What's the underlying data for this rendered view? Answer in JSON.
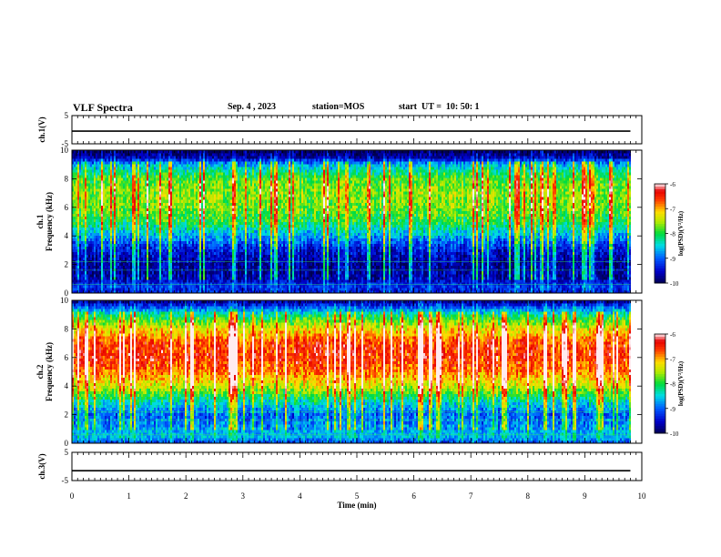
{
  "header": {
    "title": "VLF Spectra",
    "date": "Sep. 4 , 2023",
    "station": "station=MOS",
    "start": "start  UT =  10: 50: 1"
  },
  "chart_data": [
    {
      "type": "line",
      "panel": "ch1-waveform",
      "ylabel": "ch.1(V)",
      "ylim": [
        -5,
        5
      ],
      "yticks": [
        "5",
        "-5"
      ],
      "xlim": [
        0,
        10
      ],
      "series": [
        {
          "x": [
            0,
            9.8
          ],
          "values": [
            -0.5,
            -0.5
          ]
        }
      ]
    },
    {
      "type": "heatmap",
      "panel": "ch1-spectrogram",
      "ylabel": "ch.1\nFrequency (kHz)",
      "ylim": [
        0,
        10
      ],
      "yticks": [
        "0",
        "2",
        "4",
        "6",
        "8",
        "10"
      ],
      "xlim": [
        0,
        10
      ],
      "data_xmax": 9.8,
      "profile": [
        {
          "f": 0.0,
          "level": -9.4
        },
        {
          "f": 0.5,
          "level": -9.2
        },
        {
          "f": 1.0,
          "level": -9.6
        },
        {
          "f": 2.0,
          "level": -9.7
        },
        {
          "f": 3.0,
          "level": -9.4
        },
        {
          "f": 4.0,
          "level": -8.7
        },
        {
          "f": 5.0,
          "level": -8.0
        },
        {
          "f": 6.0,
          "level": -7.7
        },
        {
          "f": 7.0,
          "level": -7.6
        },
        {
          "f": 8.0,
          "level": -7.8
        },
        {
          "f": 9.0,
          "level": -8.6
        },
        {
          "f": 9.5,
          "level": -9.6
        },
        {
          "f": 10.0,
          "level": -10.0
        }
      ],
      "colorbar": {
        "label": "log(PSD)(V²/Hz)",
        "range": [
          -10,
          -6
        ],
        "ticks": [
          "-6",
          "-7",
          "-8",
          "-9",
          "-10"
        ]
      }
    },
    {
      "type": "heatmap",
      "panel": "ch2-spectrogram",
      "ylabel": "ch.2\nFrequency (kHz)",
      "ylim": [
        0,
        10
      ],
      "yticks": [
        "0",
        "2",
        "4",
        "6",
        "8",
        "10"
      ],
      "xlim": [
        0,
        10
      ],
      "data_xmax": 9.8,
      "profile": [
        {
          "f": 0.0,
          "level": -9.2
        },
        {
          "f": 0.5,
          "level": -8.6
        },
        {
          "f": 1.0,
          "level": -8.7
        },
        {
          "f": 2.0,
          "level": -9.0
        },
        {
          "f": 3.0,
          "level": -8.3
        },
        {
          "f": 4.0,
          "level": -7.4
        },
        {
          "f": 5.0,
          "level": -6.8
        },
        {
          "f": 6.0,
          "level": -6.5
        },
        {
          "f": 7.0,
          "level": -6.6
        },
        {
          "f": 8.0,
          "level": -7.2
        },
        {
          "f": 9.0,
          "level": -8.2
        },
        {
          "f": 9.5,
          "level": -9.0
        },
        {
          "f": 10.0,
          "level": -9.8
        }
      ],
      "colorbar": {
        "label": "log(PSD)(V²/Hz)",
        "range": [
          -10,
          -6
        ],
        "ticks": [
          "-6",
          "-7",
          "-8",
          "-9",
          "-10"
        ]
      }
    },
    {
      "type": "line",
      "panel": "ch3-waveform",
      "ylabel": "ch.3(V)",
      "ylim": [
        -5,
        5
      ],
      "yticks": [
        "5",
        "-5"
      ],
      "xlim": [
        0,
        10
      ],
      "xlabel": "Time  (min)",
      "xticks": [
        "0",
        "1",
        "2",
        "3",
        "4",
        "5",
        "6",
        "7",
        "8",
        "9",
        "10"
      ],
      "series": [
        {
          "x": [
            0,
            9.8
          ],
          "values": [
            -1.5,
            -1.5
          ]
        }
      ]
    }
  ]
}
